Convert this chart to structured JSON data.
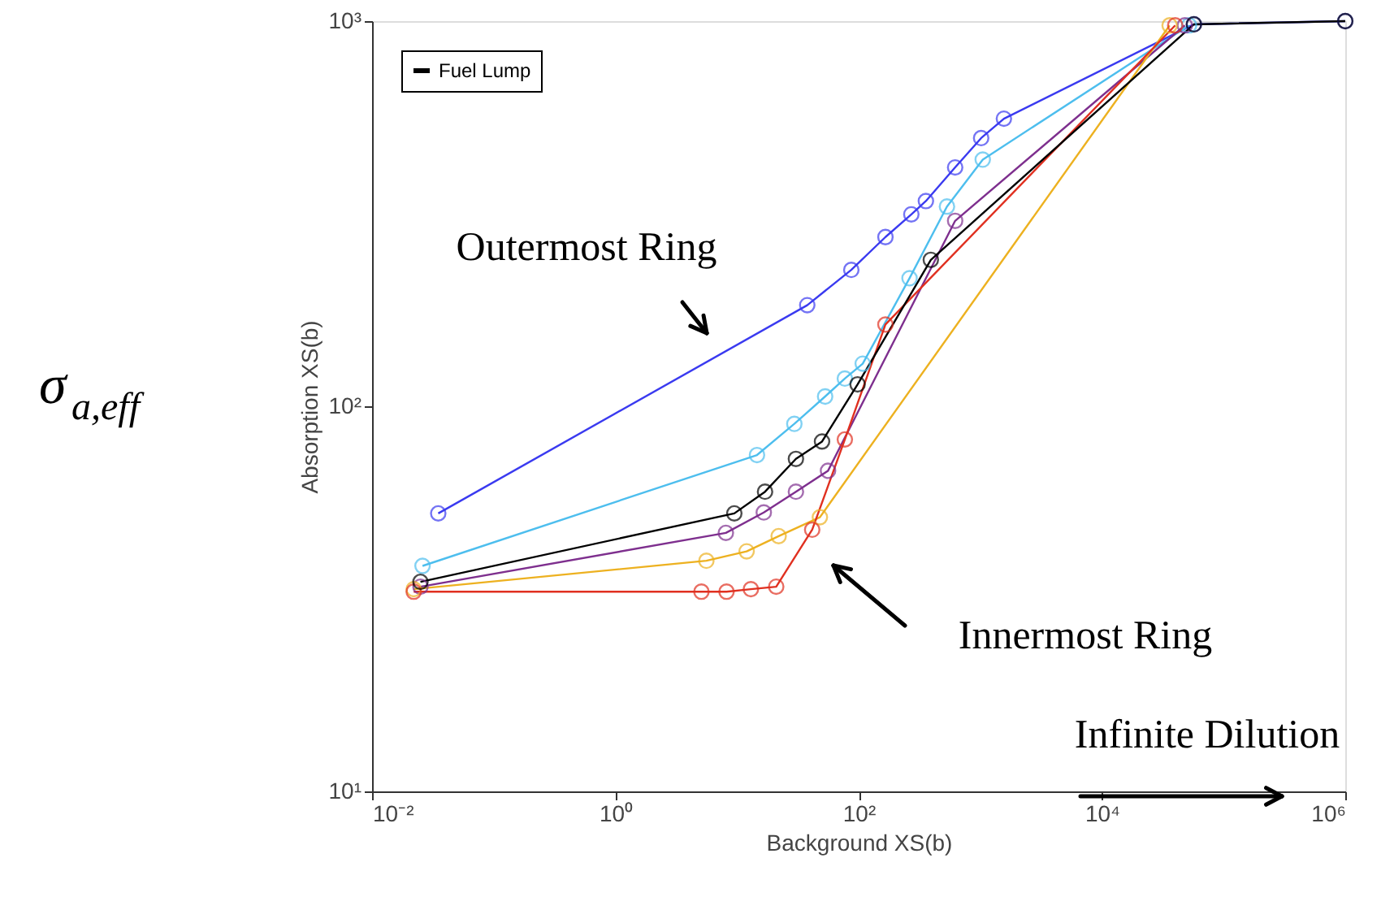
{
  "chart_data": {
    "type": "line",
    "xlabel": "Background XS(b)",
    "ylabel": "Absorption XS(b)",
    "log": "xy",
    "xlim": [
      0.01,
      1000000
    ],
    "ylim": [
      10,
      1000
    ],
    "xticks": [
      {
        "value": 0.01,
        "label": "10⁻²"
      },
      {
        "value": 1,
        "label": "10⁰"
      },
      {
        "value": 100,
        "label": "10²"
      },
      {
        "value": 10000,
        "label": "10⁴"
      },
      {
        "value": 1000000,
        "label": "10⁶"
      }
    ],
    "yticks": [
      {
        "value": 10,
        "label": "10¹"
      },
      {
        "value": 100,
        "label": "10²"
      },
      {
        "value": 1000,
        "label": "10³"
      }
    ],
    "grid": false,
    "legend": "top left",
    "marker": "circle",
    "line_style": "solid",
    "series": [
      {
        "color": "#3a3af0",
        "x": [
          0.035,
          37.8,
          87,
          166,
          271,
          357,
          621,
          1016,
          1563,
          57000,
          1000000
        ],
        "values": [
          52.7,
          183,
          226,
          275,
          315,
          341,
          417,
          497,
          558,
          981,
          1000
        ]
      },
      {
        "color": "#4dbeee",
        "x": [
          0.026,
          14.6,
          29.6,
          53,
          77,
          108,
          262,
          532,
          1047,
          52000
        ],
        "values": [
          38.5,
          74.7,
          90,
          106,
          118,
          129,
          215,
          330,
          437,
          975
        ]
      },
      {
        "color": "#7e2f8e",
        "x": [
          0.025,
          8.1,
          16.6,
          30.5,
          56,
          621,
          48000
        ],
        "values": [
          34,
          46.9,
          53,
          60,
          68,
          303,
          975
        ]
      },
      {
        "color": "#edb120",
        "x": [
          0.022,
          5.6,
          12,
          22,
          48,
          36000
        ],
        "values": [
          33.5,
          39.7,
          42,
          46,
          51.5,
          975
        ]
      },
      {
        "color": "#e03020",
        "x": [
          0.022,
          5.1,
          8.2,
          13,
          21,
          41.5,
          77,
          166,
          40000
        ],
        "values": [
          33,
          33,
          33,
          33.5,
          34,
          47.8,
          82,
          163,
          975
        ]
      },
      {
        "name": "Fuel Lump",
        "color": "#000000",
        "x": [
          0.025,
          9.5,
          17,
          30.5,
          50,
          98,
          392,
          57000,
          1000000
        ],
        "values": [
          35,
          52.7,
          60,
          73,
          81,
          114,
          240,
          981,
          1000
        ]
      }
    ],
    "annotations": [
      "Outermost Ring",
      "Innermost Ring",
      "Infinite Dilution",
      "σ$_{a,eff}$"
    ]
  }
}
